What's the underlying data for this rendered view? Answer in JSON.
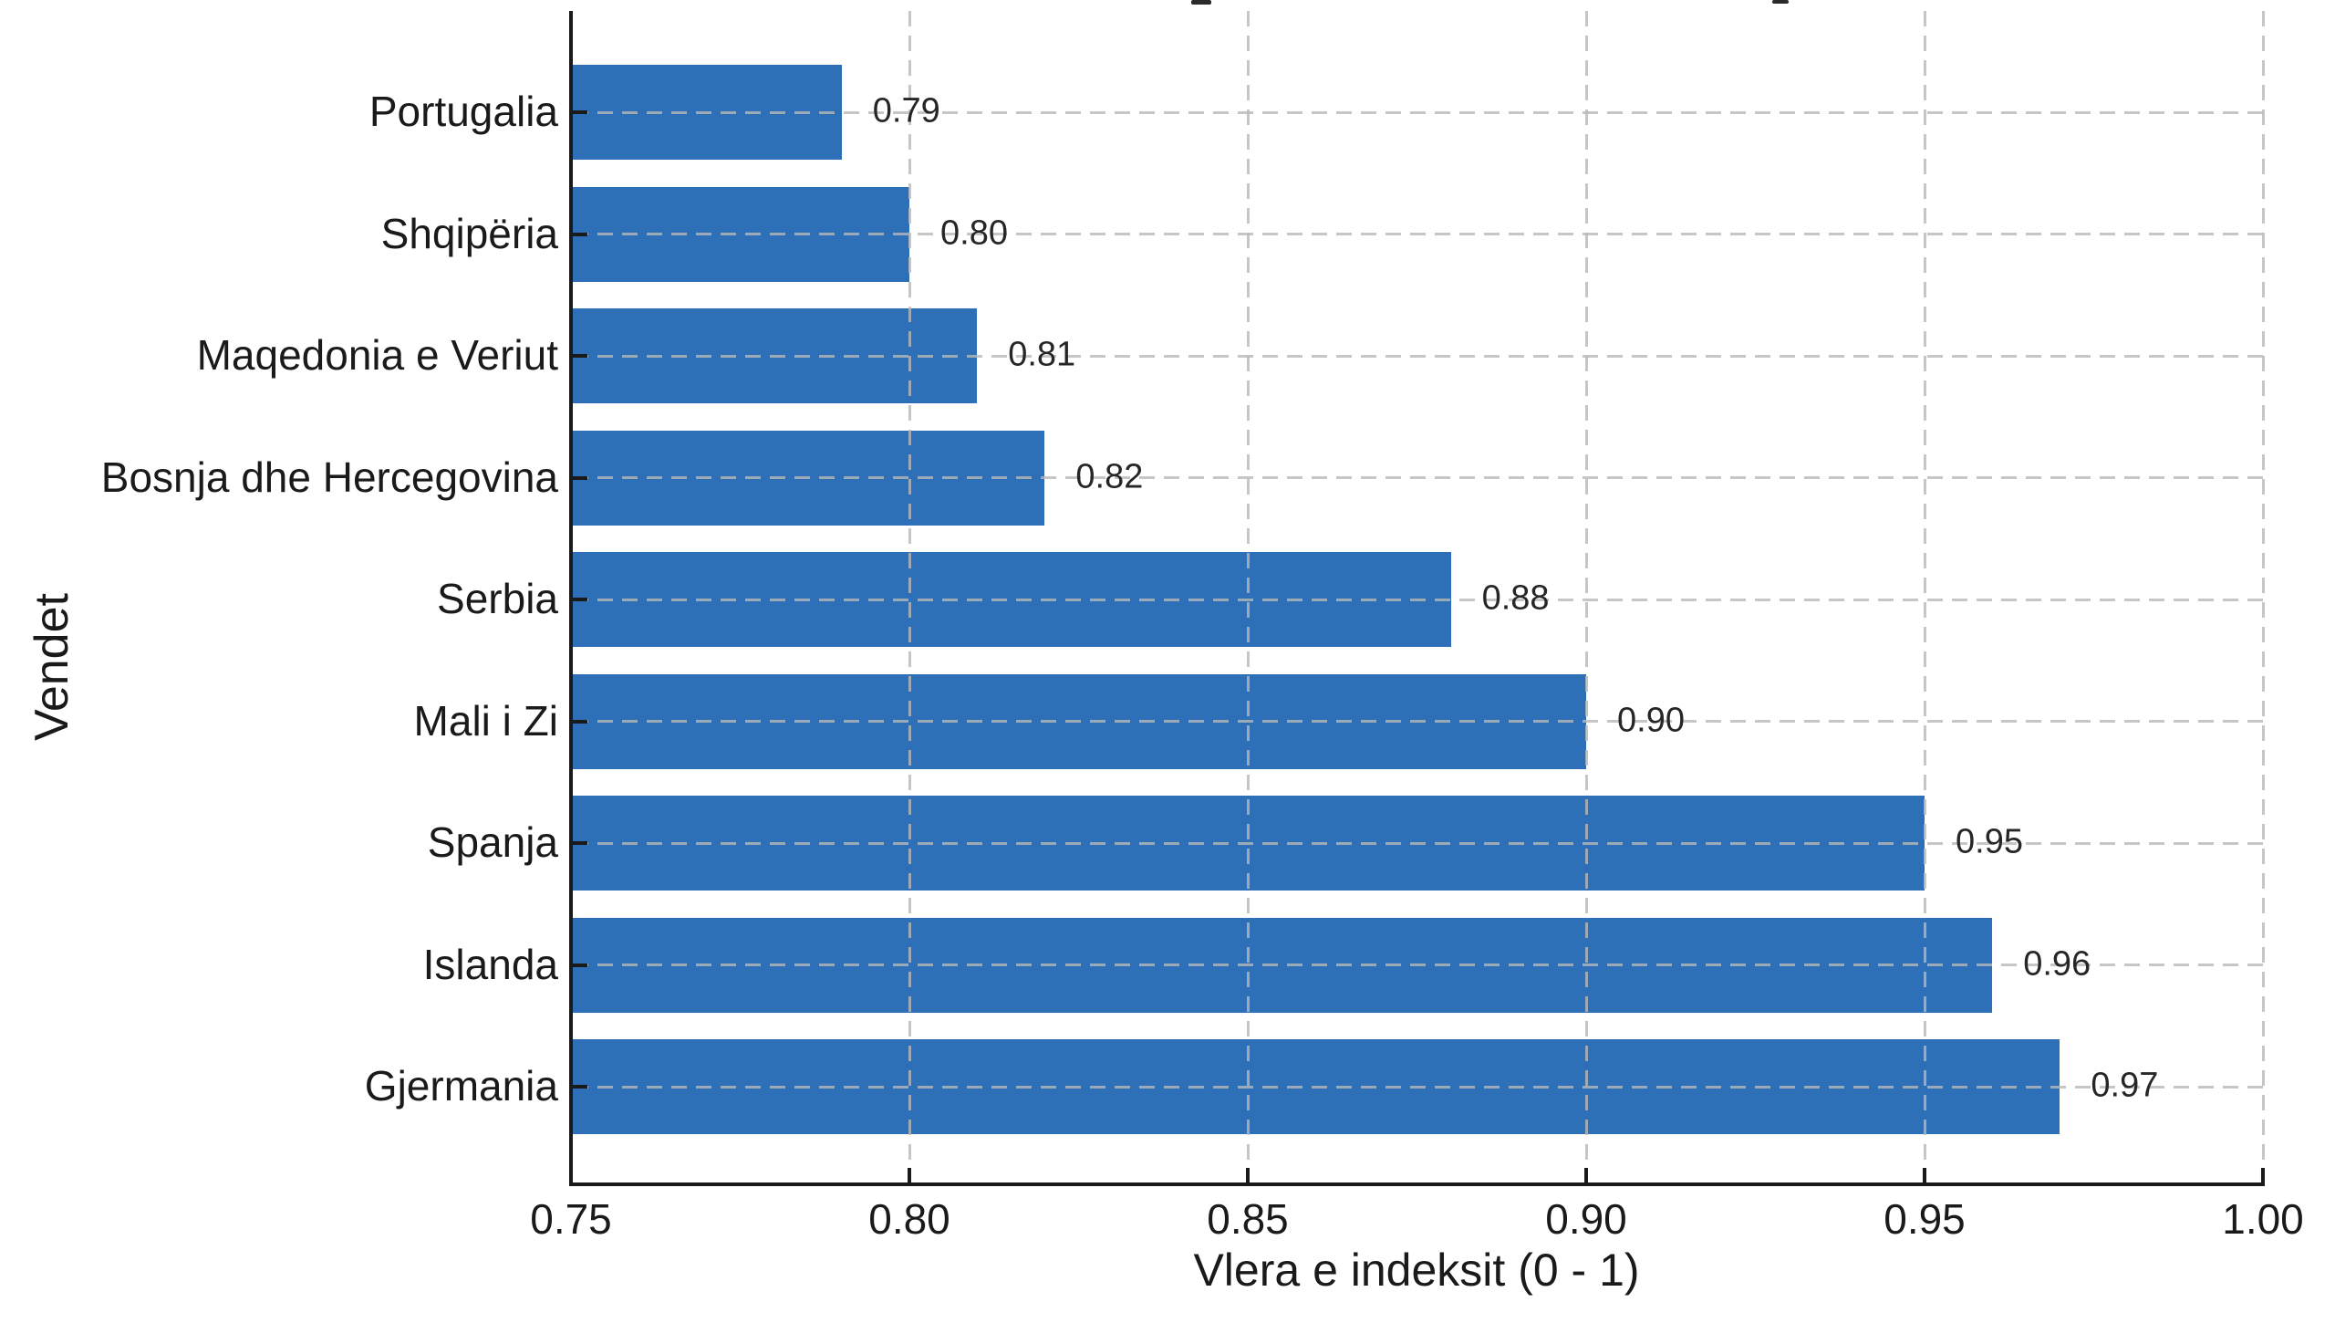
{
  "chart_data": {
    "type": "bar",
    "orientation": "horizontal",
    "categories": [
      "Portugalia",
      "Shqipëria",
      "Maqedonia e Veriut",
      "Bosnja dhe Hercegovina",
      "Serbia",
      "Mali i Zi",
      "Spanja",
      "Islanda",
      "Gjermania"
    ],
    "values": [
      0.79,
      0.8,
      0.81,
      0.82,
      0.88,
      0.9,
      0.95,
      0.96,
      0.97
    ],
    "bar_value_labels": [
      "0.79",
      "0.80",
      "0.81",
      "0.82",
      "0.88",
      "0.90",
      "0.95",
      "0.96",
      "0.97"
    ],
    "xlabel": "Vlera e indeksit (0 - 1)",
    "ylabel": "Vendet",
    "xlim": [
      0.75,
      1.0
    ],
    "x_tick_values": [
      0.75,
      0.8,
      0.85,
      0.9,
      0.95,
      1.0
    ],
    "x_tick_labels": [
      "0.75",
      "0.80",
      "0.85",
      "0.90",
      "0.95",
      "1.00"
    ],
    "grid": true,
    "grid_style": "dashed",
    "grid_over_bars": true,
    "legend": null,
    "colors": {
      "bar": "#2d70b8",
      "grid": "rgba(184,184,184,0.8)",
      "spine": "#1a1a1a",
      "tick_text": "#1a1a1a",
      "value_text": "#262626"
    }
  }
}
